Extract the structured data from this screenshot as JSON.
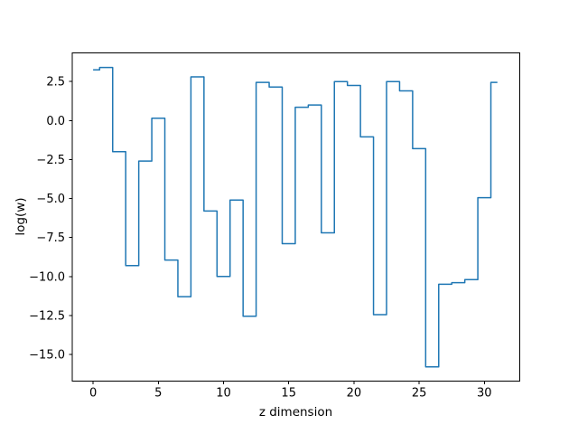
{
  "figure": {
    "background": "#ffffff"
  },
  "chart_data": {
    "type": "line",
    "subtype": "step-mid",
    "title": "",
    "xlabel": "z dimension",
    "ylabel": "log(w)",
    "x": [
      0,
      1,
      2,
      3,
      4,
      5,
      6,
      7,
      8,
      9,
      10,
      11,
      12,
      13,
      14,
      15,
      16,
      17,
      18,
      19,
      20,
      21,
      22,
      23,
      24,
      25,
      26,
      27,
      28,
      29,
      30,
      31
    ],
    "series": [
      {
        "name": "log(w)",
        "color": "#1f77b4",
        "values": [
          3.25,
          3.4,
          -2.0,
          -9.3,
          -2.6,
          0.15,
          -8.95,
          -11.3,
          2.8,
          -5.8,
          -10.0,
          -5.1,
          -12.55,
          2.45,
          2.15,
          -7.9,
          0.85,
          1.0,
          -7.2,
          2.5,
          2.25,
          -1.05,
          -12.45,
          2.5,
          1.9,
          -1.8,
          -15.8,
          -10.5,
          -10.4,
          -10.2,
          -4.95,
          2.45
        ]
      }
    ],
    "xlim": [
      -1.6,
      32.7
    ],
    "ylim": [
      -16.7,
      4.35
    ],
    "xticks": [
      0,
      5,
      10,
      15,
      20,
      25,
      30
    ],
    "xtick_labels": [
      "0",
      "5",
      "10",
      "15",
      "20",
      "25",
      "30"
    ],
    "yticks": [
      2.5,
      0.0,
      -2.5,
      -5.0,
      -7.5,
      -10.0,
      -12.5,
      -15.0
    ],
    "ytick_labels": [
      "2.5",
      "0.0",
      "−2.5",
      "−5.0",
      "−7.5",
      "−10.0",
      "−12.5",
      "−15.0"
    ],
    "grid": false,
    "legend": false,
    "line_width": 1.5,
    "axis_color": "#000000",
    "background_color": "#ffffff"
  }
}
